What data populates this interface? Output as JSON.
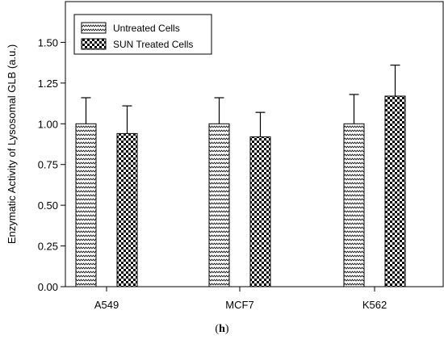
{
  "chart_data": {
    "type": "bar",
    "title": "",
    "xlabel": "",
    "ylabel": "Enzymatic Activity of Lysosomal GLB (a.u.)",
    "categories": [
      "A549",
      "MCF7",
      "K562"
    ],
    "ylim": [
      0,
      1.75
    ],
    "yticks": [
      "0.00",
      "0.25",
      "0.50",
      "0.75",
      "1.00",
      "1.25",
      "1.50"
    ],
    "series": [
      {
        "name": "Untreated Cells",
        "pattern": "zigzag",
        "values": [
          1.0,
          1.0,
          1.0
        ],
        "errors": [
          0.16,
          0.16,
          0.18
        ]
      },
      {
        "name": "SUN Treated Cells",
        "pattern": "checker",
        "values": [
          0.94,
          0.92,
          1.17
        ],
        "errors": [
          0.17,
          0.15,
          0.19
        ]
      }
    ],
    "legend_position": "top-left",
    "grid": false,
    "error_bars": "upper"
  },
  "panel": {
    "open": "(",
    "letter": "h",
    "close": ")"
  },
  "colors": {
    "axis": "#000000",
    "fill_light": "#ffffff",
    "fill_dark": "#000000"
  }
}
